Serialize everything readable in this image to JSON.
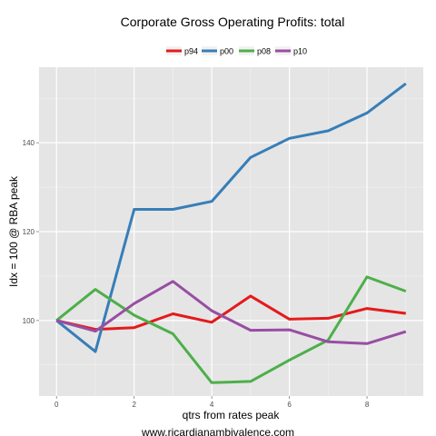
{
  "chart_data": {
    "type": "line",
    "title": "Corporate Gross Operating Profits: total",
    "xlabel": "qtrs from rates peak",
    "ylabel": "Idx = 100 @ RBA peak",
    "x": [
      0,
      1,
      2,
      3,
      4,
      5,
      6,
      7,
      8,
      9
    ],
    "xlim": [
      -0.45,
      9.45
    ],
    "ylim": [
      83,
      157
    ],
    "xticks": [
      0,
      2,
      4,
      6,
      8
    ],
    "yticks": [
      100,
      120,
      140
    ],
    "grid": true,
    "legend_position": "top",
    "series": [
      {
        "name": "p94",
        "color": "#e41a1c",
        "values": [
          100,
          98,
          98.4,
          101.5,
          99.6,
          105.5,
          100.3,
          100.5,
          102.7,
          101.6
        ]
      },
      {
        "name": "p00",
        "color": "#377eb8",
        "values": [
          100,
          93,
          125,
          125,
          126.8,
          136.7,
          141,
          142.7,
          146.7,
          153.3
        ]
      },
      {
        "name": "p08",
        "color": "#4daf4a",
        "values": [
          100,
          107,
          101.2,
          97,
          86,
          86.3,
          91.1,
          95.6,
          109.8,
          106.6
        ]
      },
      {
        "name": "p10",
        "color": "#984ea3",
        "values": [
          100,
          97.6,
          103.8,
          108.8,
          102.2,
          97.8,
          97.9,
          95.2,
          94.8,
          97.5
        ]
      }
    ]
  },
  "footer": "www.ricardianambivalence.com"
}
